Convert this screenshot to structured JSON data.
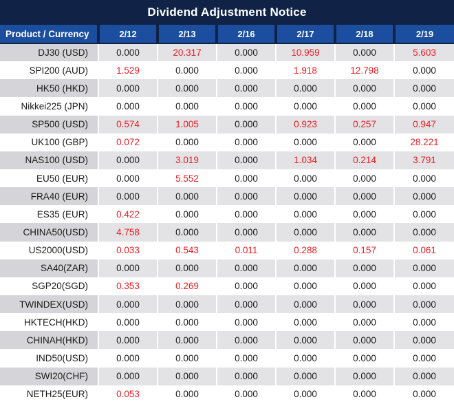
{
  "title": "Dividend Adjustment Notice",
  "colors": {
    "title_bar_bg": "#102347",
    "header_bg": "#1b4e9e",
    "header_text": "#ffffff",
    "alt_row_product_bg": "#d5d5d9",
    "alt_row_value_bg": "#e3e3e5",
    "row_bg": "#ffffff",
    "positive_value_text": "#ed1c24",
    "zero_value_text": "#1a1a1a"
  },
  "table": {
    "product_header": "Product / Currency",
    "date_headers": [
      "2/12",
      "2/13",
      "2/16",
      "2/17",
      "2/18",
      "2/19"
    ],
    "rows": [
      {
        "product": "DJ30 (USD)",
        "values": [
          "0.000",
          "20.317",
          "0.000",
          "10.959",
          "0.000",
          "5.603"
        ]
      },
      {
        "product": "SPI200 (AUD)",
        "values": [
          "1.529",
          "0.000",
          "0.000",
          "1.918",
          "12.798",
          "0.000"
        ]
      },
      {
        "product": "HK50 (HKD)",
        "values": [
          "0.000",
          "0.000",
          "0.000",
          "0.000",
          "0.000",
          "0.000"
        ]
      },
      {
        "product": "Nikkei225 (JPN)",
        "values": [
          "0.000",
          "0.000",
          "0.000",
          "0.000",
          "0.000",
          "0.000"
        ]
      },
      {
        "product": "SP500 (USD)",
        "values": [
          "0.574",
          "1.005",
          "0.000",
          "0.923",
          "0.257",
          "0.947"
        ]
      },
      {
        "product": "UK100 (GBP)",
        "values": [
          "0.072",
          "0.000",
          "0.000",
          "0.000",
          "0.000",
          "28.221"
        ]
      },
      {
        "product": "NAS100 (USD)",
        "values": [
          "0.000",
          "3.019",
          "0.000",
          "1.034",
          "0.214",
          "3.791"
        ]
      },
      {
        "product": "EU50 (EUR)",
        "values": [
          "0.000",
          "5.552",
          "0.000",
          "0.000",
          "0.000",
          "0.000"
        ]
      },
      {
        "product": "FRA40 (EUR)",
        "values": [
          "0.000",
          "0.000",
          "0.000",
          "0.000",
          "0.000",
          "0.000"
        ]
      },
      {
        "product": "ES35 (EUR)",
        "values": [
          "0.422",
          "0.000",
          "0.000",
          "0.000",
          "0.000",
          "0.000"
        ]
      },
      {
        "product": "CHINA50(USD)",
        "values": [
          "4.758",
          "0.000",
          "0.000",
          "0.000",
          "0.000",
          "0.000"
        ]
      },
      {
        "product": "US2000(USD)",
        "values": [
          "0.033",
          "0.543",
          "0.011",
          "0.288",
          "0.157",
          "0.061"
        ]
      },
      {
        "product": "SA40(ZAR)",
        "values": [
          "0.000",
          "0.000",
          "0.000",
          "0.000",
          "0.000",
          "0.000"
        ]
      },
      {
        "product": "SGP20(SGD)",
        "values": [
          "0.353",
          "0.269",
          "0.000",
          "0.000",
          "0.000",
          "0.000"
        ]
      },
      {
        "product": "TWINDEX(USD)",
        "values": [
          "0.000",
          "0.000",
          "0.000",
          "0.000",
          "0.000",
          "0.000"
        ]
      },
      {
        "product": "HKTECH(HKD)",
        "values": [
          "0.000",
          "0.000",
          "0.000",
          "0.000",
          "0.000",
          "0.000"
        ]
      },
      {
        "product": "CHINAH(HKD)",
        "values": [
          "0.000",
          "0.000",
          "0.000",
          "0.000",
          "0.000",
          "0.000"
        ]
      },
      {
        "product": "IND50(USD)",
        "values": [
          "0.000",
          "0.000",
          "0.000",
          "0.000",
          "0.000",
          "0.000"
        ]
      },
      {
        "product": "SWI20(CHF)",
        "values": [
          "0.000",
          "0.000",
          "0.000",
          "0.000",
          "0.000",
          "0.000"
        ]
      },
      {
        "product": "NETH25(EUR)",
        "values": [
          "0.053",
          "0.000",
          "0.000",
          "0.000",
          "0.000",
          "0.000"
        ]
      }
    ]
  }
}
